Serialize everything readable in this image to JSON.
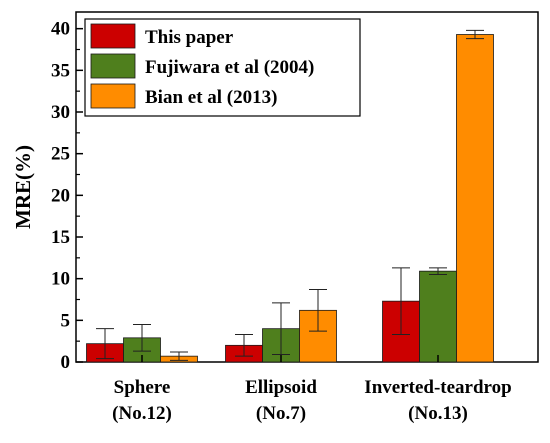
{
  "chart_data": {
    "type": "bar",
    "categories": [
      [
        "Sphere",
        "(No.12)"
      ],
      [
        "Ellipsoid",
        "(No.7)"
      ],
      [
        "Inverted-teardrop",
        "(No.13)"
      ]
    ],
    "ylabel": "MRE(%)",
    "xlabel": "",
    "ylim": [
      0,
      42
    ],
    "yticks": [
      0,
      5,
      10,
      15,
      20,
      25,
      30,
      35,
      40
    ],
    "grid": false,
    "legend_position": "top-left",
    "series": [
      {
        "name": "This paper",
        "color": "#cc0000",
        "values": [
          2.2,
          2.0,
          7.3
        ],
        "errors": [
          1.8,
          1.3,
          4.0
        ]
      },
      {
        "name": "Fujiwara et al (2004)",
        "color": "#4f7f1d",
        "values": [
          2.9,
          4.0,
          10.9
        ],
        "errors": [
          1.6,
          3.1,
          0.4
        ]
      },
      {
        "name": "Bian et al (2013)",
        "color": "#ff8c00",
        "values": [
          0.7,
          6.2,
          39.3
        ],
        "errors": [
          0.5,
          2.5,
          0.5
        ]
      }
    ]
  }
}
